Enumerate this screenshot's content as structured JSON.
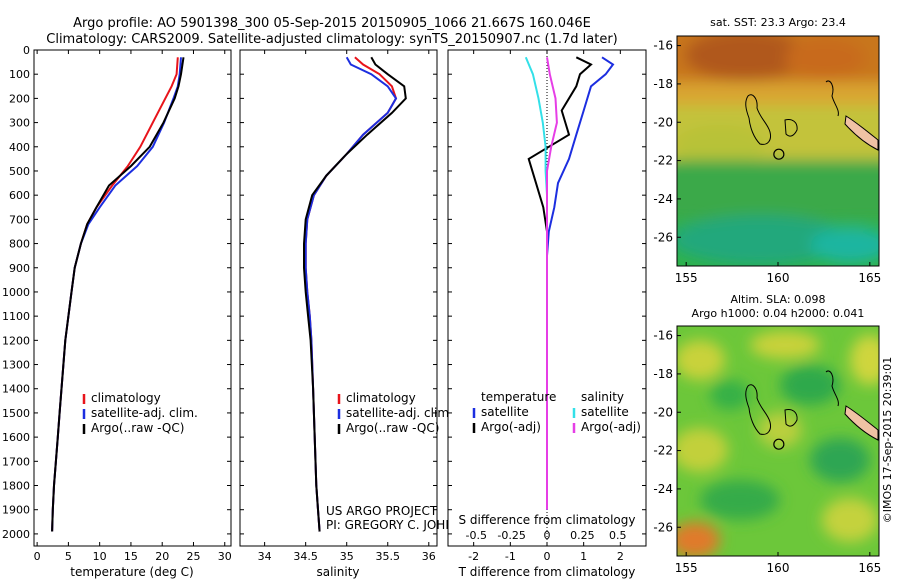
{
  "header": {
    "line1": "Argo profile: AO 5901398_300 05-Sep-2015 20150905_1066 21.667S 160.046E",
    "line2": "Climatology: CARS2009. Satellite-adjusted climatology: synTS_20150907.nc (1.7d later)"
  },
  "colors": {
    "climatology": "#e8141b",
    "satellite": "#1c2ee0",
    "argo": "#000000",
    "sal_satellite": "#33e0e8",
    "sal_argo": "#e63ee6"
  },
  "chart_data": [
    {
      "type": "line",
      "name": "temperature-panel",
      "xlabel": "temperature (deg C)",
      "xlim": [
        -0.5,
        31
      ],
      "xticks": [
        0,
        5,
        10,
        15,
        20,
        25,
        30
      ],
      "ylim": [
        0,
        2050
      ],
      "ylim_reversed": true,
      "yticks": [
        0,
        100,
        200,
        300,
        400,
        500,
        600,
        700,
        800,
        900,
        1000,
        1100,
        1200,
        1300,
        1400,
        1500,
        1600,
        1700,
        1800,
        1900,
        2000
      ],
      "legend": [
        "climatology",
        "satellite-adj. clim.",
        "Argo(..raw -QC)"
      ],
      "legend_position": "lower-right",
      "series": [
        {
          "name": "climatology",
          "color_key": "climatology",
          "x": [
            22.5,
            22.3,
            21.5,
            20.5,
            18.5,
            16.5,
            14.5,
            12.0,
            9.5,
            8.0,
            7.0,
            6.0,
            5.5,
            5.0,
            4.5,
            4.2,
            3.9,
            3.6,
            3.3,
            3.0,
            2.7,
            2.5,
            2.4
          ],
          "y": [
            30,
            100,
            150,
            200,
            300,
            400,
            480,
            560,
            650,
            720,
            800,
            900,
            1000,
            1100,
            1200,
            1300,
            1400,
            1500,
            1600,
            1700,
            1800,
            1900,
            1990
          ]
        },
        {
          "name": "satellite-adj. clim.",
          "color_key": "satellite",
          "x": [
            23.0,
            22.8,
            22.5,
            21.8,
            20.3,
            18.5,
            16.0,
            12.5,
            10.0,
            8.2,
            7.0,
            6.0,
            5.5,
            5.0,
            4.5,
            4.2,
            3.9,
            3.6,
            3.3,
            3.0,
            2.7,
            2.5,
            2.4
          ],
          "y": [
            30,
            100,
            150,
            200,
            300,
            400,
            480,
            560,
            650,
            720,
            800,
            900,
            1000,
            1100,
            1200,
            1300,
            1400,
            1500,
            1600,
            1700,
            1800,
            1900,
            1990
          ]
        },
        {
          "name": "Argo(..raw -QC)",
          "color_key": "argo",
          "x": [
            23.4,
            23.0,
            22.6,
            22.0,
            20.2,
            18.0,
            15.0,
            11.5,
            9.5,
            8.0,
            7.0,
            6.0,
            5.5,
            5.0,
            4.5,
            4.2,
            3.9,
            3.6,
            3.3,
            3.0,
            2.7,
            2.5,
            2.4
          ],
          "y": [
            30,
            100,
            150,
            200,
            300,
            400,
            480,
            560,
            650,
            720,
            800,
            900,
            1000,
            1100,
            1200,
            1300,
            1400,
            1500,
            1600,
            1700,
            1800,
            1900,
            1990
          ]
        }
      ]
    },
    {
      "type": "line",
      "name": "salinity-panel",
      "xlabel": "salinity",
      "xlim": [
        33.7,
        36.1
      ],
      "xticks": [
        34,
        34.5,
        35,
        35.5,
        36
      ],
      "ylim": [
        0,
        2050
      ],
      "ylim_reversed": true,
      "legend": [
        "climatology",
        "satellite-adj. clim.",
        "Argo(..raw -QC)"
      ],
      "legend_position": "lower-right",
      "annotation": [
        "US ARGO PROJECT",
        "PI: GREGORY C. JOHNSON"
      ],
      "series": [
        {
          "name": "climatology",
          "color_key": "climatology",
          "x": [
            35.1,
            35.2,
            35.4,
            35.55,
            35.6,
            35.5,
            35.2,
            35.0,
            34.75,
            34.6,
            34.52,
            34.5,
            34.5,
            34.52,
            34.55,
            34.57,
            34.59,
            34.61,
            34.63,
            34.65,
            34.67
          ],
          "y": [
            30,
            60,
            100,
            150,
            200,
            260,
            350,
            430,
            520,
            600,
            700,
            800,
            900,
            1000,
            1100,
            1200,
            1400,
            1600,
            1800,
            1900,
            1990
          ]
        },
        {
          "name": "satellite-adj. clim.",
          "color_key": "satellite",
          "x": [
            35.0,
            35.05,
            35.3,
            35.5,
            35.6,
            35.5,
            35.2,
            35.0,
            34.75,
            34.6,
            34.52,
            34.5,
            34.5,
            34.52,
            34.55,
            34.57,
            34.59,
            34.61,
            34.63,
            34.65,
            34.67
          ],
          "y": [
            30,
            60,
            100,
            150,
            200,
            260,
            350,
            430,
            520,
            600,
            700,
            800,
            900,
            1000,
            1100,
            1200,
            1400,
            1600,
            1800,
            1900,
            1990
          ]
        },
        {
          "name": "Argo(..raw -QC)",
          "color_key": "argo",
          "x": [
            35.3,
            35.35,
            35.5,
            35.7,
            35.72,
            35.55,
            35.25,
            35.0,
            34.75,
            34.58,
            34.5,
            34.48,
            34.48,
            34.5,
            34.53,
            34.56,
            34.59,
            34.61,
            34.63,
            34.65,
            34.67
          ],
          "y": [
            30,
            60,
            100,
            150,
            200,
            260,
            350,
            430,
            520,
            600,
            700,
            800,
            900,
            1000,
            1100,
            1200,
            1400,
            1600,
            1800,
            1900,
            1990
          ]
        }
      ]
    },
    {
      "type": "line",
      "name": "difference-panel",
      "xlabel": "T difference from climatology",
      "xlabel_top": "S difference from climatology",
      "xlim_T": [
        -2.7,
        2.7
      ],
      "xticks_T": [
        -2,
        -1,
        0,
        1,
        2
      ],
      "xticks_S": [
        -0.5,
        -0.25,
        0,
        0.25,
        0.5
      ],
      "xtick_labels_S": [
        "-0.5",
        "-0.25",
        "0",
        "0.25",
        "0.5"
      ],
      "ylim": [
        0,
        2050
      ],
      "ylim_reversed": true,
      "legend_groups": [
        {
          "title": "temperature",
          "items": [
            "satellite",
            "Argo(-adj)"
          ]
        },
        {
          "title": "salinity",
          "items": [
            "satellite",
            "Argo(-adj)"
          ]
        }
      ],
      "series": [
        {
          "name": "temperature satellite",
          "color_key": "satellite",
          "x": [
            1.5,
            1.8,
            1.6,
            1.2,
            1.0,
            0.8,
            0.6,
            0.3,
            0.2,
            0.05,
            0.0,
            0.0,
            0.0,
            0.0,
            0.0
          ],
          "y": [
            30,
            60,
            100,
            150,
            250,
            350,
            450,
            550,
            650,
            750,
            850,
            1000,
            1300,
            1600,
            1900
          ]
        },
        {
          "name": "temperature Argo(-adj)",
          "color_key": "argo",
          "x": [
            0.8,
            1.2,
            0.9,
            0.8,
            0.4,
            0.6,
            -0.5,
            -0.3,
            -0.1,
            0.0,
            0.0,
            0.0,
            0.0,
            0.0,
            0.0
          ],
          "y": [
            30,
            60,
            100,
            150,
            250,
            350,
            450,
            550,
            650,
            750,
            850,
            1000,
            1300,
            1600,
            1900
          ]
        },
        {
          "name": "salinity satellite",
          "color_key": "sal_satellite",
          "x": [
            -0.15,
            -0.1,
            -0.06,
            -0.03,
            -0.01,
            -0.01,
            0.0,
            0.0,
            0.0,
            0.0,
            0.0,
            0.0,
            0.0,
            0.0
          ],
          "y": [
            30,
            100,
            200,
            300,
            400,
            500,
            600,
            700,
            800,
            900,
            1000,
            1300,
            1600,
            1900
          ]
        },
        {
          "name": "salinity Argo(-adj)",
          "color_key": "sal_argo",
          "x": [
            0.0,
            0.02,
            0.06,
            0.07,
            0.03,
            0.0,
            0.0,
            0.0,
            0.0,
            0.0,
            0.0,
            0.0,
            0.0,
            0.0
          ],
          "y": [
            30,
            100,
            200,
            300,
            400,
            500,
            600,
            700,
            800,
            900,
            1000,
            1300,
            1600,
            1900
          ]
        }
      ]
    },
    {
      "type": "heatmap",
      "name": "sst-map",
      "title": "sat. SST: 23.3  Argo: 23.4",
      "xlim": [
        154.5,
        165.5
      ],
      "ylim": [
        -27.5,
        -15.5
      ],
      "xticks": [
        155,
        160,
        165
      ],
      "yticks": [
        -16,
        -18,
        -20,
        -22,
        -24,
        -26
      ],
      "marker": {
        "lon": 160.046,
        "lat": -21.667
      }
    },
    {
      "type": "heatmap",
      "name": "sla-map",
      "title_lines": [
        "Altim. SLA: 0.098",
        "Argo h1000: 0.04 h2000: 0.041"
      ],
      "xlim": [
        154.5,
        165.5
      ],
      "ylim": [
        -27.5,
        -15.5
      ],
      "xticks": [
        155,
        160,
        165
      ],
      "yticks": [
        -16,
        -18,
        -20,
        -22,
        -24,
        -26
      ],
      "marker": {
        "lon": 160.046,
        "lat": -21.667
      }
    }
  ],
  "footer": {
    "credit": "©IMOS 17-Sep-2015 20:39:01"
  }
}
